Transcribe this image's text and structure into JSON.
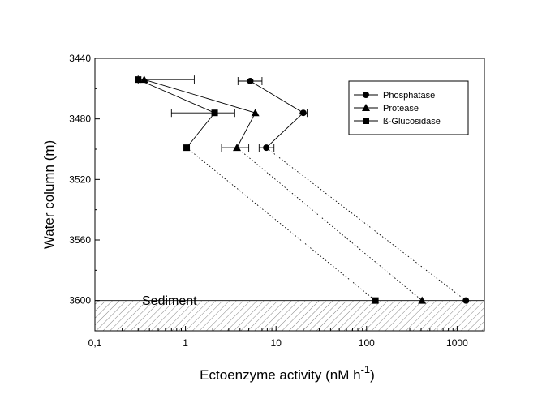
{
  "chart_data": {
    "type": "scatter",
    "xlabel": "Ectoenzyme activity (nM h",
    "xlabel_superscript": "-1",
    "xlabel_close": ")",
    "ylabel": "Water column (m)",
    "x_scale": "log",
    "xlim": [
      0.1,
      2000
    ],
    "ylim": [
      3440,
      3620
    ],
    "y_inverted": true,
    "x_tick_labels": [
      "0,1",
      "1",
      "10",
      "100",
      "1000"
    ],
    "x_tick_values": [
      0.1,
      1,
      10,
      100,
      1000
    ],
    "y_ticks": [
      3440,
      3480,
      3520,
      3560,
      3600
    ],
    "grid": false,
    "legend_position": "top-right",
    "annotation": {
      "text": "Sediment",
      "y_from": 3600,
      "y_to": 3620
    },
    "series": [
      {
        "name": "Phosphatase",
        "marker": "circle",
        "water_column": [
          {
            "x": 5.2,
            "y": 3455,
            "xerr": [
              3.8,
              7.0
            ]
          },
          {
            "x": 20.0,
            "y": 3476,
            "xerr": [
              18.0,
              22.0
            ]
          },
          {
            "x": 7.8,
            "y": 3499,
            "xerr": [
              6.5,
              9.5
            ]
          }
        ],
        "sediment": {
          "x": 1250,
          "y": 3600
        }
      },
      {
        "name": "Protease",
        "marker": "triangle",
        "water_column": [
          {
            "x": 0.35,
            "y": 3454,
            "xerr": [
              0.3,
              1.25
            ]
          },
          {
            "x": 5.9,
            "y": 3476,
            "xerr": null
          },
          {
            "x": 3.7,
            "y": 3499,
            "xerr": [
              2.5,
              5.0
            ]
          }
        ],
        "sediment": {
          "x": 410,
          "y": 3600
        }
      },
      {
        "name": "ß-Glucosidase",
        "marker": "square",
        "water_column": [
          {
            "x": 0.3,
            "y": 3454,
            "xerr": null
          },
          {
            "x": 2.1,
            "y": 3476,
            "xerr": [
              0.7,
              3.5
            ]
          },
          {
            "x": 1.03,
            "y": 3499,
            "xerr": null
          }
        ],
        "sediment": {
          "x": 125,
          "y": 3600
        }
      }
    ]
  }
}
